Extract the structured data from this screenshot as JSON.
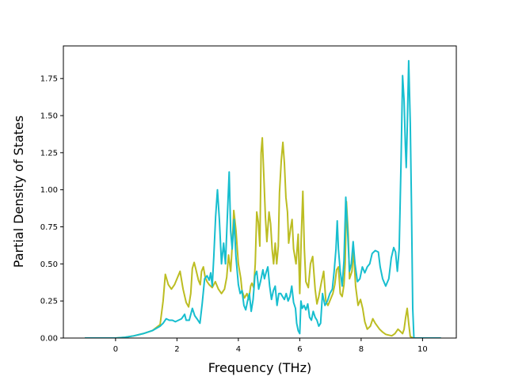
{
  "chart_data": {
    "type": "line",
    "xlabel": "Frequency (THz)",
    "ylabel": "Partial Density of States",
    "xlim": [
      -1.7,
      11.1
    ],
    "ylim": [
      0.0,
      1.97
    ],
    "xticks": [
      0,
      2,
      4,
      6,
      8,
      10
    ],
    "yticks": [
      0.0,
      0.25,
      0.5,
      0.75,
      1.0,
      1.25,
      1.5,
      1.75
    ],
    "ytick_labels": [
      "0.00",
      "0.25",
      "0.50",
      "0.75",
      "1.00",
      "1.25",
      "1.50",
      "1.75"
    ],
    "grid": false,
    "legend": "none",
    "series": [
      {
        "color": "#bcbd22",
        "points": [
          [
            -1.0,
            0
          ],
          [
            0.0,
            0
          ],
          [
            0.3,
            0.005
          ],
          [
            0.6,
            0.015
          ],
          [
            0.9,
            0.03
          ],
          [
            1.2,
            0.05
          ],
          [
            1.45,
            0.09
          ],
          [
            1.55,
            0.25
          ],
          [
            1.62,
            0.43
          ],
          [
            1.72,
            0.36
          ],
          [
            1.82,
            0.33
          ],
          [
            1.92,
            0.36
          ],
          [
            2.02,
            0.41
          ],
          [
            2.1,
            0.45
          ],
          [
            2.2,
            0.33
          ],
          [
            2.3,
            0.24
          ],
          [
            2.38,
            0.21
          ],
          [
            2.45,
            0.3
          ],
          [
            2.5,
            0.47
          ],
          [
            2.56,
            0.51
          ],
          [
            2.62,
            0.46
          ],
          [
            2.7,
            0.39
          ],
          [
            2.76,
            0.36
          ],
          [
            2.8,
            0.45
          ],
          [
            2.86,
            0.48
          ],
          [
            2.92,
            0.41
          ],
          [
            2.98,
            0.38
          ],
          [
            3.05,
            0.36
          ],
          [
            3.15,
            0.34
          ],
          [
            3.25,
            0.38
          ],
          [
            3.35,
            0.33
          ],
          [
            3.45,
            0.3
          ],
          [
            3.55,
            0.33
          ],
          [
            3.62,
            0.41
          ],
          [
            3.68,
            0.56
          ],
          [
            3.75,
            0.45
          ],
          [
            3.8,
            0.62
          ],
          [
            3.85,
            0.86
          ],
          [
            3.92,
            0.73
          ],
          [
            4.0,
            0.5
          ],
          [
            4.08,
            0.4
          ],
          [
            4.12,
            0.32
          ],
          [
            4.2,
            0.27
          ],
          [
            4.28,
            0.3
          ],
          [
            4.34,
            0.26
          ],
          [
            4.4,
            0.35
          ],
          [
            4.44,
            0.37
          ],
          [
            4.5,
            0.34
          ],
          [
            4.55,
            0.5
          ],
          [
            4.6,
            0.85
          ],
          [
            4.65,
            0.78
          ],
          [
            4.7,
            0.62
          ],
          [
            4.74,
            1.25
          ],
          [
            4.78,
            1.35
          ],
          [
            4.83,
            1.1
          ],
          [
            4.88,
            0.82
          ],
          [
            4.93,
            0.65
          ],
          [
            5.0,
            0.85
          ],
          [
            5.05,
            0.77
          ],
          [
            5.1,
            0.6
          ],
          [
            5.15,
            0.5
          ],
          [
            5.2,
            0.64
          ],
          [
            5.25,
            0.5
          ],
          [
            5.3,
            0.62
          ],
          [
            5.34,
            0.98
          ],
          [
            5.4,
            1.2
          ],
          [
            5.45,
            1.32
          ],
          [
            5.5,
            1.18
          ],
          [
            5.55,
            0.95
          ],
          [
            5.6,
            0.85
          ],
          [
            5.64,
            0.64
          ],
          [
            5.7,
            0.74
          ],
          [
            5.75,
            0.8
          ],
          [
            5.8,
            0.6
          ],
          [
            5.88,
            0.5
          ],
          [
            5.95,
            0.7
          ],
          [
            6.0,
            0.3
          ],
          [
            6.05,
            0.68
          ],
          [
            6.1,
            0.99
          ],
          [
            6.15,
            0.6
          ],
          [
            6.2,
            0.38
          ],
          [
            6.28,
            0.34
          ],
          [
            6.35,
            0.5
          ],
          [
            6.42,
            0.55
          ],
          [
            6.5,
            0.33
          ],
          [
            6.56,
            0.23
          ],
          [
            6.62,
            0.28
          ],
          [
            6.7,
            0.37
          ],
          [
            6.78,
            0.45
          ],
          [
            6.85,
            0.25
          ],
          [
            6.92,
            0.22
          ],
          [
            7.0,
            0.26
          ],
          [
            7.08,
            0.3
          ],
          [
            7.14,
            0.36
          ],
          [
            7.2,
            0.46
          ],
          [
            7.26,
            0.48
          ],
          [
            7.32,
            0.3
          ],
          [
            7.38,
            0.28
          ],
          [
            7.44,
            0.36
          ],
          [
            7.48,
            0.5
          ],
          [
            7.52,
            0.92
          ],
          [
            7.58,
            0.7
          ],
          [
            7.62,
            0.4
          ],
          [
            7.7,
            0.45
          ],
          [
            7.75,
            0.6
          ],
          [
            7.82,
            0.35
          ],
          [
            7.9,
            0.22
          ],
          [
            7.98,
            0.26
          ],
          [
            8.05,
            0.2
          ],
          [
            8.12,
            0.11
          ],
          [
            8.2,
            0.06
          ],
          [
            8.3,
            0.08
          ],
          [
            8.38,
            0.13
          ],
          [
            8.46,
            0.1
          ],
          [
            8.6,
            0.06
          ],
          [
            8.7,
            0.04
          ],
          [
            8.8,
            0.025
          ],
          [
            8.9,
            0.02
          ],
          [
            9.0,
            0.015
          ],
          [
            9.1,
            0.03
          ],
          [
            9.2,
            0.06
          ],
          [
            9.3,
            0.04
          ],
          [
            9.35,
            0.03
          ],
          [
            9.4,
            0.06
          ],
          [
            9.45,
            0.14
          ],
          [
            9.5,
            0.2
          ],
          [
            9.55,
            0.1
          ],
          [
            9.6,
            0.01
          ],
          [
            9.7,
            0
          ],
          [
            10.6,
            0
          ]
        ]
      },
      {
        "color": "#17becf",
        "points": [
          [
            -1.0,
            0
          ],
          [
            0.0,
            0
          ],
          [
            0.3,
            0.005
          ],
          [
            0.6,
            0.015
          ],
          [
            0.9,
            0.03
          ],
          [
            1.2,
            0.05
          ],
          [
            1.45,
            0.08
          ],
          [
            1.55,
            0.1
          ],
          [
            1.65,
            0.13
          ],
          [
            1.75,
            0.12
          ],
          [
            1.85,
            0.12
          ],
          [
            1.95,
            0.11
          ],
          [
            2.05,
            0.12
          ],
          [
            2.15,
            0.13
          ],
          [
            2.25,
            0.16
          ],
          [
            2.3,
            0.12
          ],
          [
            2.4,
            0.12
          ],
          [
            2.5,
            0.2
          ],
          [
            2.58,
            0.15
          ],
          [
            2.65,
            0.13
          ],
          [
            2.75,
            0.1
          ],
          [
            2.82,
            0.23
          ],
          [
            2.9,
            0.4
          ],
          [
            2.98,
            0.42
          ],
          [
            3.05,
            0.39
          ],
          [
            3.1,
            0.44
          ],
          [
            3.15,
            0.35
          ],
          [
            3.2,
            0.55
          ],
          [
            3.26,
            0.82
          ],
          [
            3.32,
            1.0
          ],
          [
            3.38,
            0.8
          ],
          [
            3.45,
            0.5
          ],
          [
            3.52,
            0.64
          ],
          [
            3.58,
            0.5
          ],
          [
            3.65,
            0.86
          ],
          [
            3.7,
            1.12
          ],
          [
            3.75,
            0.72
          ],
          [
            3.8,
            0.6
          ],
          [
            3.86,
            0.8
          ],
          [
            3.92,
            0.55
          ],
          [
            4.0,
            0.36
          ],
          [
            4.06,
            0.3
          ],
          [
            4.12,
            0.32
          ],
          [
            4.18,
            0.22
          ],
          [
            4.24,
            0.19
          ],
          [
            4.3,
            0.25
          ],
          [
            4.36,
            0.3
          ],
          [
            4.42,
            0.18
          ],
          [
            4.48,
            0.26
          ],
          [
            4.54,
            0.42
          ],
          [
            4.6,
            0.45
          ],
          [
            4.66,
            0.33
          ],
          [
            4.72,
            0.38
          ],
          [
            4.8,
            0.46
          ],
          [
            4.85,
            0.4
          ],
          [
            4.9,
            0.44
          ],
          [
            4.96,
            0.48
          ],
          [
            5.02,
            0.35
          ],
          [
            5.08,
            0.26
          ],
          [
            5.14,
            0.32
          ],
          [
            5.2,
            0.35
          ],
          [
            5.26,
            0.22
          ],
          [
            5.32,
            0.3
          ],
          [
            5.38,
            0.3
          ],
          [
            5.44,
            0.28
          ],
          [
            5.5,
            0.26
          ],
          [
            5.56,
            0.3
          ],
          [
            5.62,
            0.25
          ],
          [
            5.68,
            0.28
          ],
          [
            5.74,
            0.35
          ],
          [
            5.8,
            0.24
          ],
          [
            5.86,
            0.2
          ],
          [
            5.9,
            0.1
          ],
          [
            5.95,
            0.05
          ],
          [
            6.0,
            0.03
          ],
          [
            6.04,
            0.25
          ],
          [
            6.08,
            0.2
          ],
          [
            6.14,
            0.22
          ],
          [
            6.2,
            0.19
          ],
          [
            6.26,
            0.23
          ],
          [
            6.32,
            0.14
          ],
          [
            6.38,
            0.12
          ],
          [
            6.44,
            0.18
          ],
          [
            6.5,
            0.14
          ],
          [
            6.56,
            0.12
          ],
          [
            6.62,
            0.08
          ],
          [
            6.68,
            0.1
          ],
          [
            6.74,
            0.3
          ],
          [
            6.82,
            0.22
          ],
          [
            6.9,
            0.25
          ],
          [
            6.98,
            0.3
          ],
          [
            7.06,
            0.33
          ],
          [
            7.12,
            0.45
          ],
          [
            7.18,
            0.6
          ],
          [
            7.22,
            0.79
          ],
          [
            7.26,
            0.6
          ],
          [
            7.32,
            0.45
          ],
          [
            7.38,
            0.35
          ],
          [
            7.44,
            0.52
          ],
          [
            7.5,
            0.95
          ],
          [
            7.56,
            0.72
          ],
          [
            7.62,
            0.45
          ],
          [
            7.68,
            0.5
          ],
          [
            7.74,
            0.65
          ],
          [
            7.8,
            0.5
          ],
          [
            7.88,
            0.38
          ],
          [
            7.96,
            0.4
          ],
          [
            8.04,
            0.48
          ],
          [
            8.12,
            0.44
          ],
          [
            8.2,
            0.48
          ],
          [
            8.28,
            0.5
          ],
          [
            8.36,
            0.57
          ],
          [
            8.46,
            0.59
          ],
          [
            8.56,
            0.58
          ],
          [
            8.62,
            0.48
          ],
          [
            8.7,
            0.4
          ],
          [
            8.8,
            0.35
          ],
          [
            8.9,
            0.4
          ],
          [
            8.98,
            0.54
          ],
          [
            9.06,
            0.61
          ],
          [
            9.12,
            0.58
          ],
          [
            9.18,
            0.45
          ],
          [
            9.24,
            0.6
          ],
          [
            9.3,
            1.2
          ],
          [
            9.35,
            1.77
          ],
          [
            9.4,
            1.6
          ],
          [
            9.44,
            1.3
          ],
          [
            9.47,
            1.15
          ],
          [
            9.5,
            1.4
          ],
          [
            9.55,
            1.87
          ],
          [
            9.6,
            1.45
          ],
          [
            9.64,
            0.9
          ],
          [
            9.68,
            0.2
          ],
          [
            9.72,
            0
          ],
          [
            10.6,
            0
          ]
        ]
      }
    ]
  }
}
